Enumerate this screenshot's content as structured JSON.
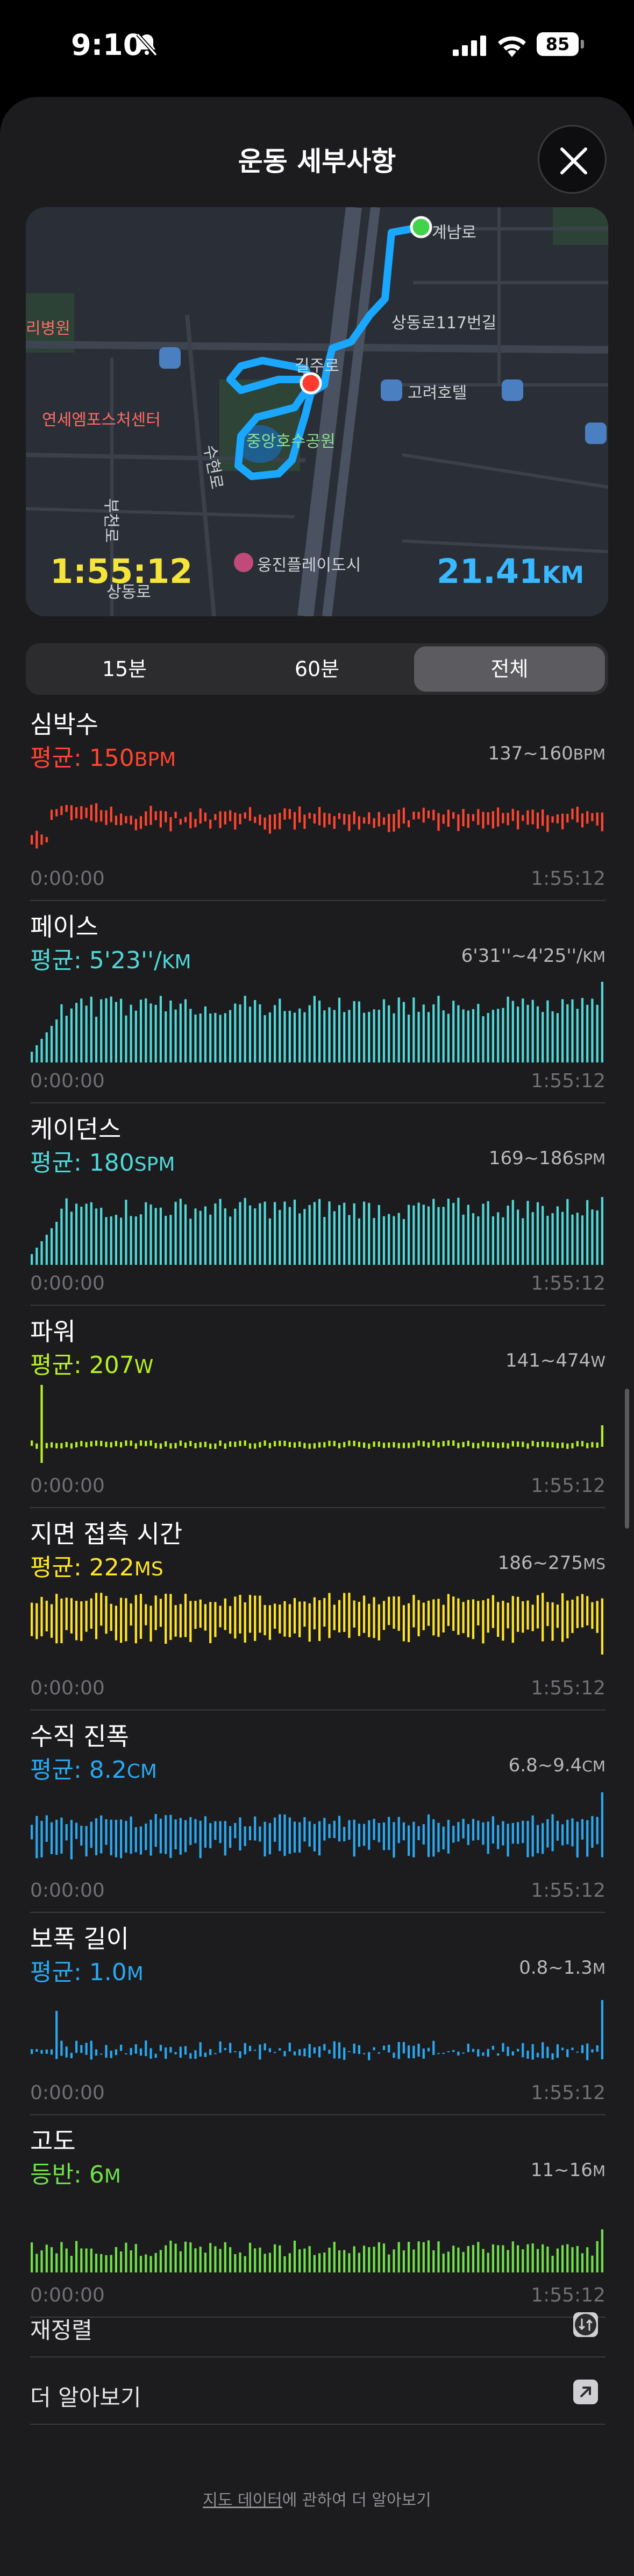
{
  "status": {
    "time": "9:10",
    "battery": "85"
  },
  "title": "운동 세부사항",
  "map": {
    "duration": "1:55:12",
    "distance_value": "21.41",
    "distance_unit": "KM",
    "labels": [
      "상동로117번길",
      "고려호텔",
      "연세엠포스처센터",
      "중앙호수공원",
      "웅진플레이도시",
      "계남로",
      "길주로",
      "수현로",
      "부천로",
      "상동로",
      "리병원"
    ]
  },
  "segments": [
    "15분",
    "60분",
    "전체"
  ],
  "selected_segment": "전체",
  "metrics": [
    {
      "title": "심박수",
      "avg_prefix": "평균: ",
      "avg_value": "150",
      "avg_unit": "BPM",
      "range": "137~160",
      "range_unit": "BPM",
      "start": "0:00:00",
      "end": "1:55:12",
      "color": "#ff4530",
      "style": "heart"
    },
    {
      "title": "페이스",
      "avg_prefix": "평균: ",
      "avg_value": "5'23''/",
      "avg_unit": "KM",
      "range": "6'31''~4'25''/",
      "range_unit": "KM",
      "start": "0:00:00",
      "end": "1:55:12",
      "color": "#4fd8d8",
      "style": "pace"
    },
    {
      "title": "케이던스",
      "avg_prefix": "평균: ",
      "avg_value": "180",
      "avg_unit": "SPM",
      "range": "169~186",
      "range_unit": "SPM",
      "start": "0:00:00",
      "end": "1:55:12",
      "color": "#4fd8d8",
      "style": "cadence"
    },
    {
      "title": "파워",
      "avg_prefix": "평균: ",
      "avg_value": "207",
      "avg_unit": "W",
      "range": "141~474",
      "range_unit": "W",
      "start": "0:00:00",
      "end": "1:55:12",
      "color": "#b8f020",
      "style": "power"
    },
    {
      "title": "지면 접촉 시간",
      "avg_prefix": "평균: ",
      "avg_value": "222",
      "avg_unit": "MS",
      "range": "186~275",
      "range_unit": "MS",
      "start": "0:00:00",
      "end": "1:55:12",
      "color": "#ffe326",
      "style": "gct"
    },
    {
      "title": "수직 진폭",
      "avg_prefix": "평균: ",
      "avg_value": "8.2",
      "avg_unit": "CM",
      "range": "6.8~9.4",
      "range_unit": "CM",
      "start": "0:00:00",
      "end": "1:55:12",
      "color": "#2aa8f0",
      "style": "vosc"
    },
    {
      "title": "보폭 길이",
      "avg_prefix": "평균: ",
      "avg_value": "1.0",
      "avg_unit": "M",
      "range": "0.8~1.3",
      "range_unit": "M",
      "start": "0:00:00",
      "end": "1:55:12",
      "color": "#2aa8f0",
      "style": "stride"
    },
    {
      "title": "고도",
      "avg_prefix": "등반: ",
      "avg_value": "6",
      "avg_unit": "M",
      "range": "11~16",
      "range_unit": "M",
      "start": "0:00:00",
      "end": "1:55:12",
      "color": "#6fe04a",
      "style": "elev"
    }
  ],
  "rows": [
    {
      "label": "재정렬",
      "icon": "reorder-icon"
    },
    {
      "label": "더 알아보기",
      "icon": "external-link-icon"
    }
  ],
  "footnote": {
    "link": "지도 데이터",
    "text": "에 관하여 더 알아보기"
  }
}
